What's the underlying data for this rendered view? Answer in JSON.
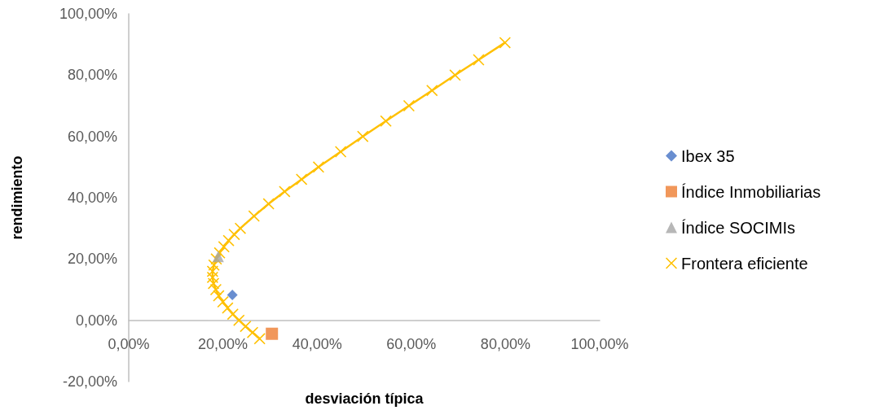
{
  "chart_data": {
    "type": "scatter",
    "xlabel": "desviación típica",
    "ylabel": "rendimiento",
    "xlim": [
      0,
      100
    ],
    "ylim": [
      -20,
      100
    ],
    "xticks": [
      {
        "value": 0,
        "label": "0,00%"
      },
      {
        "value": 20,
        "label": "20,00%"
      },
      {
        "value": 40,
        "label": "40,00%"
      },
      {
        "value": 60,
        "label": "60,00%"
      },
      {
        "value": 80,
        "label": "80,00%"
      },
      {
        "value": 100,
        "label": "100,00%"
      }
    ],
    "yticks": [
      {
        "value": -20,
        "label": "-20,00%"
      },
      {
        "value": 0,
        "label": "0,00%"
      },
      {
        "value": 20,
        "label": "20,00%"
      },
      {
        "value": 40,
        "label": "40,00%"
      },
      {
        "value": 60,
        "label": "60,00%"
      },
      {
        "value": 80,
        "label": "80,00%"
      },
      {
        "value": 100,
        "label": "100,00%"
      }
    ],
    "grid": false,
    "legend": "right",
    "series": [
      {
        "name": "Ibex 35",
        "color": "#4472c4",
        "marker": "diamond",
        "x": [
          22.0
        ],
        "values": [
          8.3
        ]
      },
      {
        "name": "Índice Inmobiliarias",
        "color": "#ed7d31",
        "marker": "square",
        "x": [
          30.4
        ],
        "values": [
          -4.4
        ]
      },
      {
        "name": "Índice SOCIMIs",
        "color": "#a5a5a5",
        "marker": "triangle",
        "x": [
          19.0
        ],
        "values": [
          20.8
        ]
      },
      {
        "name": "Frontera eficiente",
        "type": "line",
        "color": "#ffc000",
        "marker": "cross",
        "line_style": "solid",
        "x": [
          27.8,
          26.3,
          24.8,
          23.4,
          22.1,
          21.0,
          20.0,
          19.1,
          18.5,
          18.0,
          17.8,
          17.8,
          18.1,
          18.6,
          19.3,
          20.2,
          21.2,
          22.4,
          23.7,
          26.6,
          29.7,
          33.1,
          36.7,
          40.3,
          45.0,
          49.7,
          54.6,
          59.5,
          64.4,
          69.3,
          74.3,
          79.9
        ],
        "values": [
          -6,
          -4,
          -2,
          0,
          2,
          4,
          6,
          8,
          10,
          12,
          14,
          16,
          18,
          20,
          22,
          24,
          26,
          28,
          30,
          34,
          38,
          42,
          46,
          50,
          55,
          60,
          65,
          70,
          75,
          80,
          85,
          90.6
        ]
      }
    ]
  }
}
